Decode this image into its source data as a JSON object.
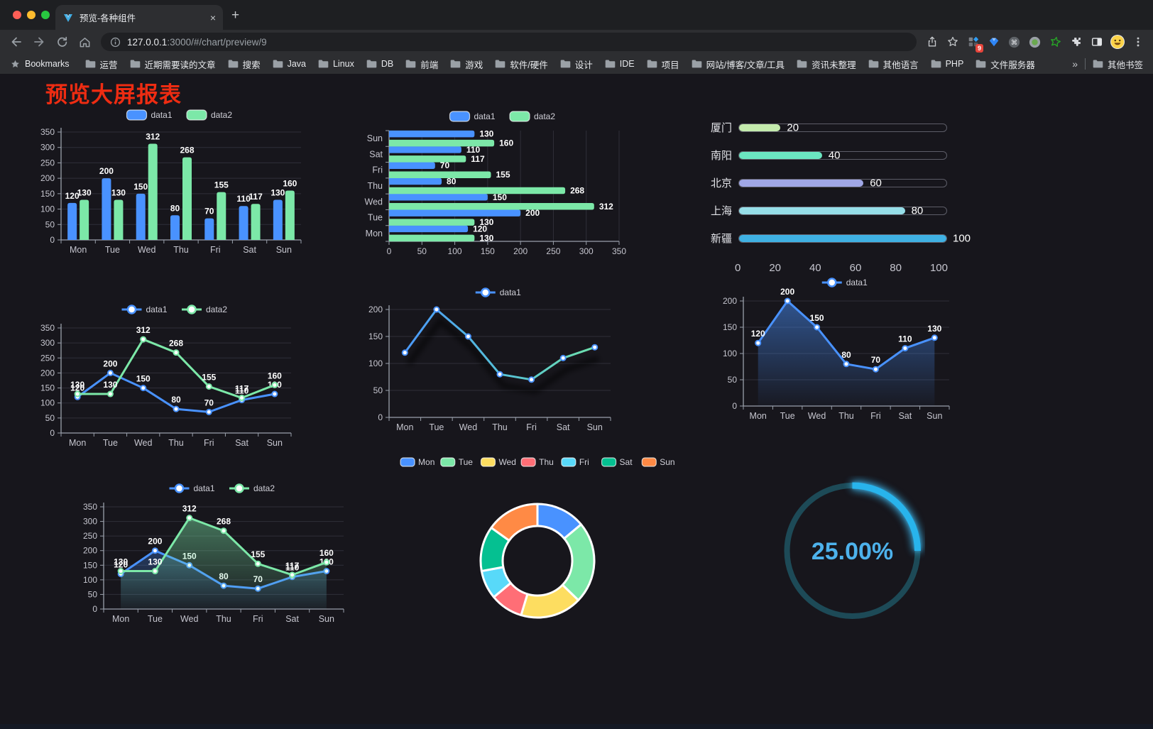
{
  "browser": {
    "tab_title": "预览-各种组件",
    "url_host": "127.0.0.1",
    "url_rest": ":3000/#/chart/preview/9",
    "extension_badge": "9",
    "bookmarks_label": "Bookmarks",
    "bookmarks": [
      "运营",
      "近期需要读的文章",
      "搜索",
      "Java",
      "Linux",
      "DB",
      "前端",
      "游戏",
      "软件/硬件",
      "设计",
      "IDE",
      "项目",
      "网站/博客/文章/工具",
      "资讯未整理",
      "其他语言",
      "PHP",
      "文件服务器"
    ],
    "overflow_chevron": "»",
    "other_bookmarks": "其他书签",
    "new_tab_label": "+",
    "tab_close_label": "×"
  },
  "page": {
    "title": "预览大屏报表",
    "title_color": "#ee2c12",
    "background": "#17161c"
  },
  "chart_data": [
    {
      "id": "bar1",
      "type": "bar",
      "legend_position": "top",
      "labels": true,
      "categories": [
        "Mon",
        "Tue",
        "Wed",
        "Thu",
        "Fri",
        "Sat",
        "Sun"
      ],
      "ylim": [
        0,
        350
      ],
      "ystep": 50,
      "series": [
        {
          "name": "data1",
          "color": "#4992ff",
          "values": [
            120,
            200,
            150,
            80,
            70,
            110,
            130
          ]
        },
        {
          "name": "data2",
          "color": "#7ce8a8",
          "values": [
            130,
            130,
            312,
            268,
            155,
            117,
            160
          ]
        }
      ]
    },
    {
      "id": "bar2",
      "type": "bar",
      "orientation": "horizontal",
      "legend_position": "top",
      "labels": true,
      "categories": [
        "Mon",
        "Tue",
        "Wed",
        "Thu",
        "Fri",
        "Sat",
        "Sun"
      ],
      "xlim": [
        0,
        350
      ],
      "xstep": 50,
      "series": [
        {
          "name": "data1",
          "color": "#4992ff",
          "values": [
            120,
            200,
            150,
            80,
            70,
            110,
            130
          ]
        },
        {
          "name": "data2",
          "color": "#7ce8a8",
          "values": [
            130,
            130,
            312,
            268,
            155,
            117,
            160
          ]
        }
      ]
    },
    {
      "id": "prog",
      "type": "progress",
      "max": 100,
      "axis_ticks": [
        0,
        20,
        40,
        60,
        80,
        100
      ],
      "items": [
        {
          "label": "厦门",
          "value": 20,
          "color": "#c4ebad"
        },
        {
          "label": "南阳",
          "value": 40,
          "color": "#6be6c1"
        },
        {
          "label": "北京",
          "value": 60,
          "color": "#a0a7e6"
        },
        {
          "label": "上海",
          "value": 80,
          "color": "#96dee8"
        },
        {
          "label": "新疆",
          "value": 100,
          "color": "#3fb1e3"
        }
      ]
    },
    {
      "id": "line1",
      "type": "line",
      "legend_position": "top",
      "labels": true,
      "categories": [
        "Mon",
        "Tue",
        "Wed",
        "Thu",
        "Fri",
        "Sat",
        "Sun"
      ],
      "ylim": [
        0,
        350
      ],
      "ystep": 50,
      "series": [
        {
          "name": "data1",
          "color": "#4992ff",
          "values": [
            120,
            200,
            150,
            80,
            70,
            110,
            130
          ]
        },
        {
          "name": "data2",
          "color": "#7ce8a8",
          "values": [
            130,
            130,
            312,
            268,
            155,
            117,
            160
          ]
        }
      ]
    },
    {
      "id": "line2",
      "type": "line",
      "legend_position": "top",
      "labels": false,
      "shadow": true,
      "categories": [
        "Mon",
        "Tue",
        "Wed",
        "Thu",
        "Fri",
        "Sat",
        "Sun"
      ],
      "ylim": [
        0,
        200
      ],
      "ystep": 50,
      "series": [
        {
          "name": "data1",
          "color": "#4992ff",
          "gradient": [
            "#4992ff",
            "#55c0d8",
            "#72e6a5"
          ],
          "values": [
            120,
            200,
            150,
            80,
            70,
            110,
            130
          ]
        }
      ]
    },
    {
      "id": "line3",
      "type": "area",
      "legend_position": "top",
      "labels": true,
      "categories": [
        "Mon",
        "Tue",
        "Wed",
        "Thu",
        "Fri",
        "Sat",
        "Sun"
      ],
      "ylim": [
        0,
        200
      ],
      "ystep": 50,
      "series": [
        {
          "name": "data1",
          "color": "#4992ff",
          "area": true,
          "values": [
            120,
            200,
            150,
            80,
            70,
            110,
            130
          ]
        }
      ]
    },
    {
      "id": "line4",
      "type": "area",
      "legend_position": "top",
      "labels": true,
      "categories": [
        "Mon",
        "Tue",
        "Wed",
        "Thu",
        "Fri",
        "Sat",
        "Sun"
      ],
      "ylim": [
        0,
        350
      ],
      "ystep": 50,
      "series": [
        {
          "name": "data1",
          "color": "#4992ff",
          "area": true,
          "values": [
            120,
            200,
            150,
            80,
            70,
            110,
            130
          ]
        },
        {
          "name": "data2",
          "color": "#7ce8a8",
          "area": true,
          "values": [
            130,
            130,
            312,
            268,
            155,
            117,
            160
          ]
        }
      ]
    },
    {
      "id": "pie",
      "type": "pie",
      "donut": true,
      "legend_position": "top",
      "items": [
        {
          "name": "Mon",
          "value": 120,
          "color": "#4992ff"
        },
        {
          "name": "Tue",
          "value": 200,
          "color": "#7ce8a8"
        },
        {
          "name": "Wed",
          "value": 150,
          "color": "#fddd60"
        },
        {
          "name": "Thu",
          "value": 80,
          "color": "#ff6e76"
        },
        {
          "name": "Fri",
          "value": 70,
          "color": "#58d9f9"
        },
        {
          "name": "Sat",
          "value": 110,
          "color": "#05c091"
        },
        {
          "name": "Sun",
          "value": 130,
          "color": "#ff8a45"
        }
      ]
    },
    {
      "id": "gauge",
      "type": "gauge",
      "value": 25,
      "max": 100,
      "label": "25.00%",
      "color": "#28b4ec",
      "track_color": "#1d4a57",
      "text_color": "#4db2ec"
    }
  ]
}
